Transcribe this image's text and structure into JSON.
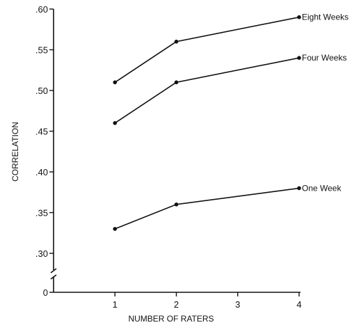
{
  "chart_data": {
    "type": "line",
    "title": "",
    "xlabel": "NUMBER OF RATERS",
    "ylabel": "CORRELATION",
    "x": [
      1,
      2,
      3,
      4
    ],
    "xlim": [
      0,
      4
    ],
    "ylim": [
      0.25,
      0.6
    ],
    "y_axis_break": true,
    "x_tick_labels": [
      "1",
      "2",
      "3",
      "4"
    ],
    "y_tick_labels": [
      ".60",
      ".55",
      ".50",
      ".45",
      ".40",
      ".35",
      ".30",
      "0"
    ],
    "grid": false,
    "series": [
      {
        "name": "Eight Weeks",
        "x": [
          1,
          2,
          4
        ],
        "values": [
          0.51,
          0.56,
          0.59
        ]
      },
      {
        "name": "Four Weeks",
        "x": [
          1,
          2,
          4
        ],
        "values": [
          0.46,
          0.51,
          0.54
        ]
      },
      {
        "name": "One Week",
        "x": [
          1,
          2,
          4
        ],
        "values": [
          0.33,
          0.36,
          0.38
        ]
      }
    ]
  }
}
